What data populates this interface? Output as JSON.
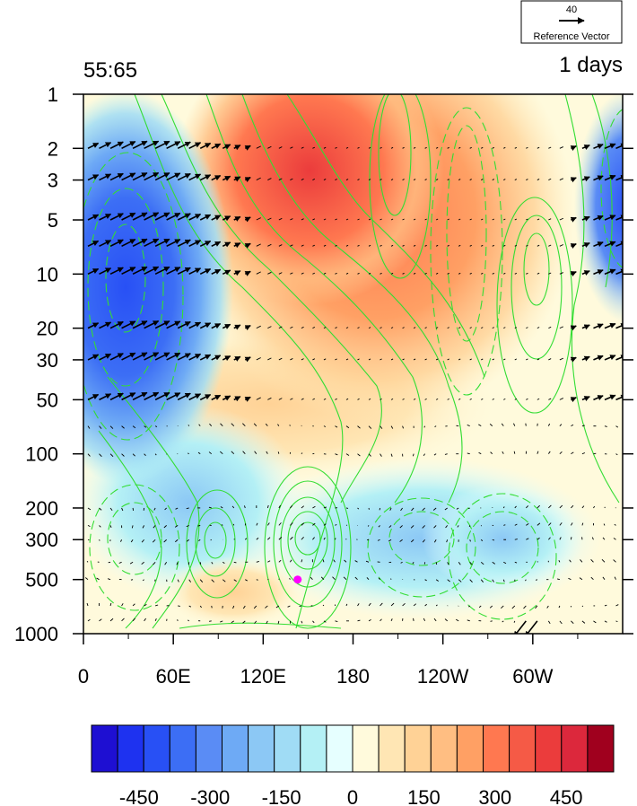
{
  "chart_data": {
    "type": "heatmap",
    "title_left": "55:65",
    "title_right": "1 days",
    "x_ticks": [
      "0",
      "60E",
      "120E",
      "180",
      "120W",
      "60W"
    ],
    "x_tick_lon": [
      0,
      60,
      120,
      180,
      240,
      300
    ],
    "x_range": [
      0,
      360
    ],
    "y_ticks": [
      "1",
      "2",
      "3",
      "5",
      "10",
      "20",
      "30",
      "50",
      "100",
      "200",
      "300",
      "500",
      "1000"
    ],
    "y_tick_values": [
      1,
      2,
      3,
      5,
      10,
      20,
      30,
      50,
      100,
      200,
      300,
      500,
      1000
    ],
    "y_range": [
      1,
      1000
    ],
    "y_scale": "log",
    "vector_levels": [
      2,
      3,
      5,
      7,
      10,
      20,
      30,
      50,
      70,
      100,
      200,
      250,
      300,
      400,
      500,
      700,
      850
    ],
    "colorbar": {
      "tick_labels": [
        "-450",
        "-300",
        "-150",
        "0",
        "150",
        "300",
        "450"
      ],
      "tick_values": [
        -450,
        -300,
        -150,
        0,
        150,
        300,
        450
      ],
      "range": [
        -550,
        550
      ],
      "colors": [
        "#1e0fd2",
        "#1e32f0",
        "#2850f5",
        "#3c6ef5",
        "#5a8cf5",
        "#6eaaf5",
        "#8cc8f5",
        "#a0dcf5",
        "#b4f0f5",
        "#e6ffff",
        "#fffadc",
        "#ffe6b4",
        "#ffd296",
        "#ffbe82",
        "#ffa064",
        "#ff7850",
        "#f55a46",
        "#eb3c3c",
        "#dc283c",
        "#a0001e"
      ]
    },
    "reference_vector": {
      "magnitude": "40",
      "label": "Reference Vector"
    },
    "marker": {
      "lon": 143,
      "level": 500,
      "color": "#ff00ff"
    }
  }
}
